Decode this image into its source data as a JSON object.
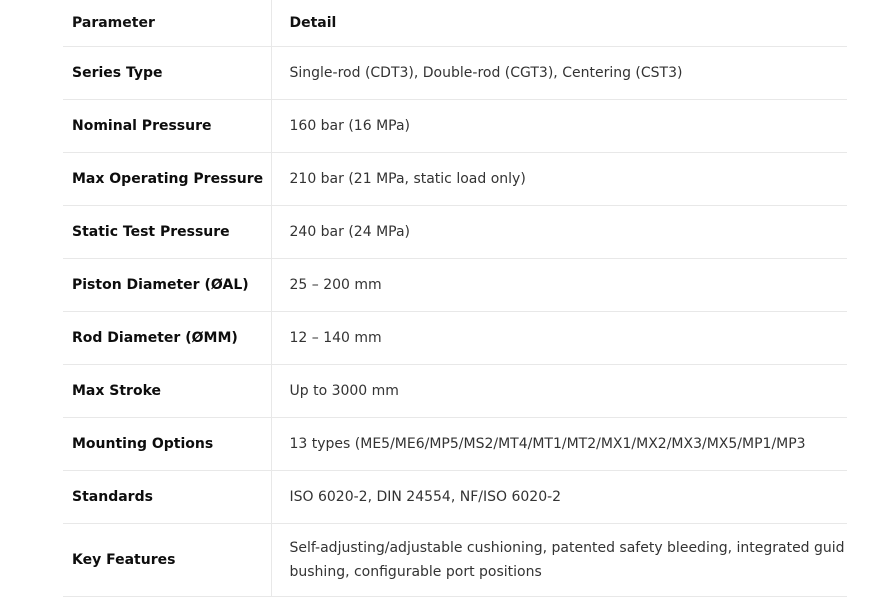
{
  "table": {
    "headers": [
      "Parameter",
      "Detail"
    ],
    "rows": [
      {
        "parameter": "Series Type",
        "detail": "Single-rod (CDT3), Double-rod (CGT3), Centering (CST3)"
      },
      {
        "parameter": "Nominal Pressure",
        "detail": "160 bar (16 MPa)"
      },
      {
        "parameter": "Max Operating Pressure",
        "detail": "210 bar (21 MPa, static load only)"
      },
      {
        "parameter": "Static Test Pressure",
        "detail": "240 bar (24 MPa)"
      },
      {
        "parameter": "Piston Diameter (ØAL)",
        "detail": "25 – 200 mm"
      },
      {
        "parameter": "Rod Diameter (ØMM)",
        "detail": "12 – 140 mm"
      },
      {
        "parameter": "Max Stroke",
        "detail": "Up to 3000 mm"
      },
      {
        "parameter": "Mounting Options",
        "detail": "13 types (ME5/ME6/MP5/MS2/MT4/MT1/MT2/MX1/MX2/MX3/MX5/MP1/MP3"
      },
      {
        "parameter": "Standards",
        "detail": "ISO 6020-2, DIN 24554, NF/ISO 6020-2"
      },
      {
        "parameter": "Key Features",
        "detail": "Self-adjusting/adjustable cushioning, patented safety bleeding, integrated guid bushing, configurable port positions"
      }
    ]
  }
}
